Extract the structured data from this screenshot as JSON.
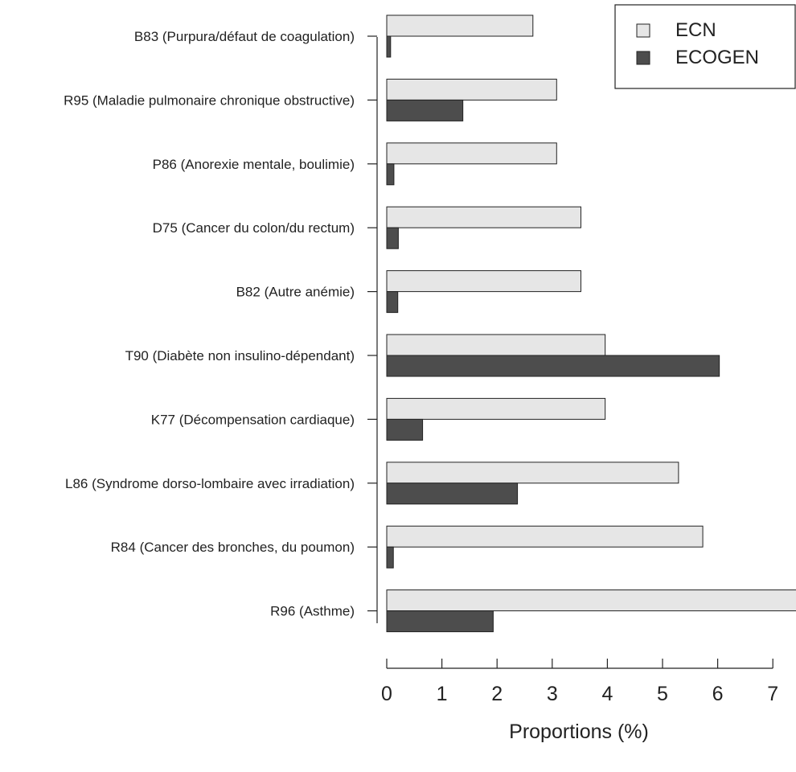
{
  "chart_data": {
    "type": "bar",
    "orientation": "horizontal",
    "title": "",
    "xlabel": "Proportions (%)",
    "ylabel": "",
    "xlim": [
      0,
      7.5
    ],
    "xticks": [
      0,
      1,
      2,
      3,
      4,
      5,
      6,
      7
    ],
    "categories": [
      "B83 (Purpura/défaut de coagulation)",
      "R95 (Maladie pulmonaire chronique obstructive)",
      "P86 (Anorexie mentale, boulimie)",
      "D75 (Cancer du colon/du rectum)",
      "B82 (Autre anémie)",
      "T90 (Diabète non insulino-dépendant)",
      "K77 (Décompensation cardiaque)",
      "L86 (Syndrome dorso-lombaire avec irradiation)",
      "R84 (Cancer des bronches, du poumon)",
      "R96 (Asthme)"
    ],
    "series": [
      {
        "name": "ECN",
        "color": "#e6e6e6",
        "values": [
          2.65,
          3.08,
          3.08,
          3.52,
          3.52,
          3.96,
          3.96,
          5.29,
          5.73,
          7.5
        ]
      },
      {
        "name": "ECOGEN",
        "color": "#4d4d4d",
        "values": [
          0.07,
          1.38,
          0.13,
          0.21,
          0.2,
          6.03,
          0.65,
          2.37,
          0.12,
          1.93
        ]
      }
    ],
    "legend_position": "top-right",
    "grid": false
  }
}
